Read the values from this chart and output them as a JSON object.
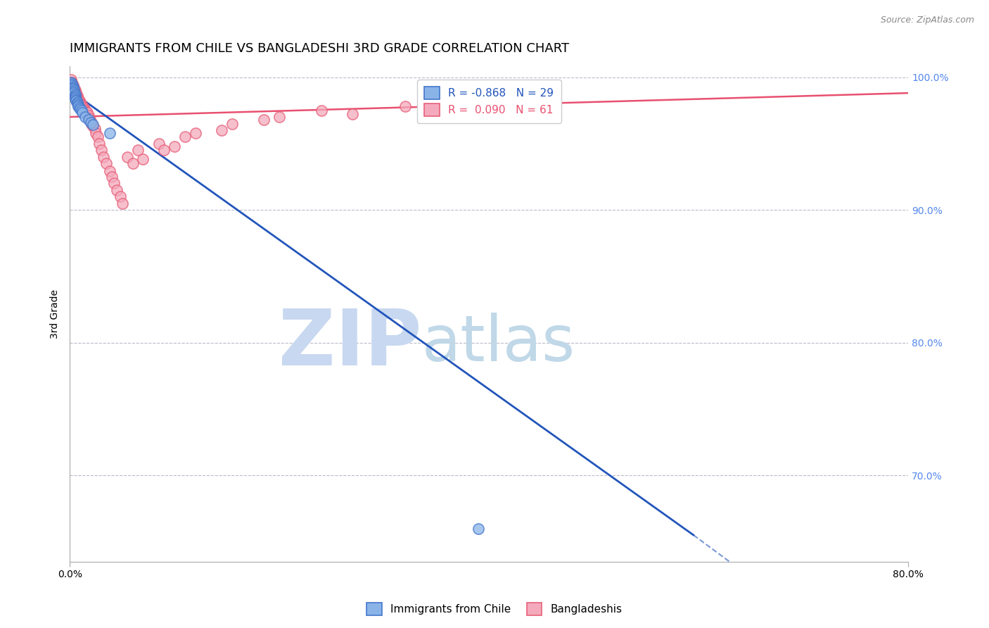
{
  "title": "IMMIGRANTS FROM CHILE VS BANGLADESHI 3RD GRADE CORRELATION CHART",
  "source": "Source: ZipAtlas.com",
  "ylabel": "3rd Grade",
  "xlim": [
    0.0,
    0.8
  ],
  "ylim": [
    0.635,
    1.008
  ],
  "yticks_right": [
    0.7,
    0.8,
    0.9,
    1.0
  ],
  "yticklabels_right": [
    "70.0%",
    "80.0%",
    "90.0%",
    "100.0%"
  ],
  "blue_color": "#8AB4E8",
  "pink_color": "#F4AABC",
  "blue_edge_color": "#4477CC",
  "pink_edge_color": "#E8607A",
  "blue_line_color": "#2255BB",
  "pink_line_color": "#E85070",
  "blue_scatter_x": [
    0.001,
    0.002,
    0.002,
    0.003,
    0.003,
    0.003,
    0.004,
    0.004,
    0.004,
    0.005,
    0.005,
    0.005,
    0.005,
    0.006,
    0.006,
    0.007,
    0.007,
    0.008,
    0.008,
    0.009,
    0.01,
    0.011,
    0.012,
    0.015,
    0.018,
    0.02,
    0.022,
    0.038,
    0.39
  ],
  "blue_scatter_y": [
    0.996,
    0.995,
    0.994,
    0.993,
    0.992,
    0.991,
    0.99,
    0.989,
    0.988,
    0.987,
    0.986,
    0.985,
    0.984,
    0.983,
    0.982,
    0.981,
    0.98,
    0.979,
    0.978,
    0.977,
    0.976,
    0.975,
    0.973,
    0.97,
    0.968,
    0.966,
    0.964,
    0.958,
    0.66
  ],
  "pink_scatter_x": [
    0.001,
    0.002,
    0.002,
    0.003,
    0.003,
    0.004,
    0.004,
    0.005,
    0.005,
    0.006,
    0.006,
    0.007,
    0.007,
    0.008,
    0.008,
    0.009,
    0.01,
    0.01,
    0.011,
    0.012,
    0.013,
    0.014,
    0.015,
    0.016,
    0.017,
    0.018,
    0.019,
    0.02,
    0.021,
    0.022,
    0.024,
    0.025,
    0.027,
    0.028,
    0.03,
    0.032,
    0.035,
    0.038,
    0.04,
    0.042,
    0.045,
    0.048,
    0.05,
    0.055,
    0.06,
    0.065,
    0.07,
    0.085,
    0.09,
    0.1,
    0.11,
    0.12,
    0.145,
    0.155,
    0.185,
    0.2,
    0.24,
    0.27,
    0.32,
    0.38,
    0.43
  ],
  "pink_scatter_y": [
    0.998,
    0.996,
    0.995,
    0.994,
    0.993,
    0.992,
    0.991,
    0.99,
    0.989,
    0.988,
    0.987,
    0.986,
    0.985,
    0.984,
    0.983,
    0.982,
    0.981,
    0.98,
    0.979,
    0.978,
    0.977,
    0.976,
    0.975,
    0.974,
    0.973,
    0.971,
    0.969,
    0.967,
    0.965,
    0.963,
    0.961,
    0.958,
    0.955,
    0.95,
    0.945,
    0.94,
    0.935,
    0.929,
    0.925,
    0.92,
    0.915,
    0.91,
    0.905,
    0.94,
    0.935,
    0.945,
    0.938,
    0.95,
    0.945,
    0.948,
    0.955,
    0.958,
    0.96,
    0.965,
    0.968,
    0.97,
    0.975,
    0.972,
    0.978,
    0.98,
    0.975
  ],
  "watermark_zip": "ZIP",
  "watermark_atlas": "atlas",
  "watermark_color_zip": "#C8D8F0",
  "watermark_color_atlas": "#C0D8E8",
  "blue_regression_x0": 0.0,
  "blue_regression_y0": 0.99,
  "blue_regression_x1": 0.595,
  "blue_regression_y1": 0.655,
  "pink_regression_x0": 0.0,
  "pink_regression_y0": 0.97,
  "pink_regression_x1": 0.8,
  "pink_regression_y1": 0.988,
  "right_axis_color": "#5588EE",
  "background_color": "#FFFFFF",
  "grid_color": "#BBBBCC",
  "title_fontsize": 13,
  "marker_size": 120
}
